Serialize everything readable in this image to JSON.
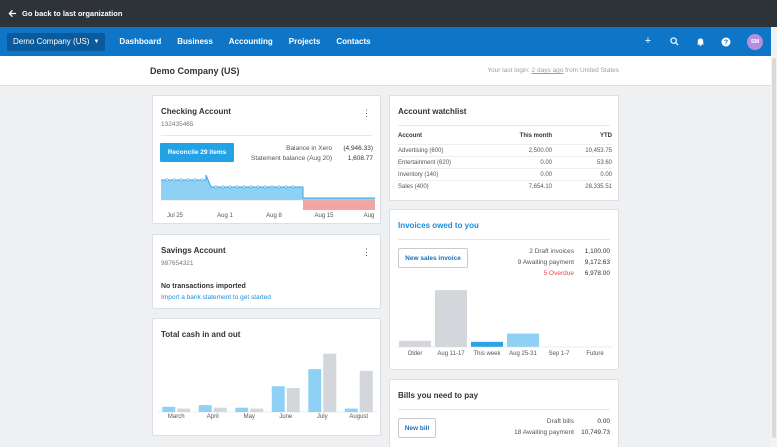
{
  "topbar": {
    "back_label": "Go back to last organization"
  },
  "nav": {
    "org_name": "Demo Company (US)",
    "links": [
      "Dashboard",
      "Business",
      "Accounting",
      "Projects",
      "Contacts"
    ],
    "icons": [
      "plus-icon",
      "search-icon",
      "bell-icon",
      "help-icon"
    ],
    "avatar_initials": "SM"
  },
  "subheader": {
    "title": "Demo Company (US)",
    "login_prefix": "Your last login:",
    "login_time": "2 days ago",
    "login_suffix": "from United States"
  },
  "checking": {
    "title": "Checking Account",
    "number": "132435465",
    "reconcile_label": "Reconcile 29 items",
    "balance_xero_label": "Balance in Xero",
    "balance_xero_value": "(4,946.33)",
    "statement_label": "Statement balance (Aug 20)",
    "statement_value": "1,608.77",
    "x_labels": [
      "Jul 25",
      "Aug 1",
      "Aug 8",
      "Aug 15",
      "Aug"
    ]
  },
  "savings": {
    "title": "Savings Account",
    "number": "987654321",
    "empty_title": "No transactions imported",
    "import_link": "Import a bank statement to get started"
  },
  "cash": {
    "title": "Total cash in and out",
    "colors": {
      "in": "#8fd1f5",
      "out": "#d3d6da"
    },
    "chart_data": {
      "type": "bar",
      "categories": [
        "March",
        "April",
        "May",
        "June",
        "July",
        "August"
      ],
      "series": [
        {
          "values": [
            6,
            8,
            5,
            30,
            50,
            4
          ]
        },
        {
          "values": [
            4,
            5,
            4,
            28,
            68,
            48
          ]
        }
      ],
      "ylim": [
        0,
        70
      ]
    }
  },
  "watchlist": {
    "title": "Account watchlist",
    "headers": [
      "Account",
      "This month",
      "YTD"
    ],
    "rows": [
      [
        "Advertising (600)",
        "2,500.00",
        "10,453.75"
      ],
      [
        "Entertainment (620)",
        "0.00",
        "53.60"
      ],
      [
        "Inventory (140)",
        "0.00",
        "0.00"
      ],
      [
        "Sales (400)",
        "7,654.10",
        "28,335.51"
      ]
    ]
  },
  "invoices": {
    "title": "Invoices owed to you",
    "new_label": "New sales invoice",
    "stats": [
      {
        "label": "2 Draft invoices",
        "value": "1,100.00"
      },
      {
        "label": "9 Awaiting payment",
        "value": "9,172.63"
      },
      {
        "label": "5 Overdue",
        "value": "6,978.00"
      }
    ],
    "colors": {
      "past": "#d3d6da",
      "current": "#2aa3e8",
      "future": "#8fd1f5"
    },
    "chart_data": {
      "type": "bar",
      "categories": [
        "Older",
        "Aug 11-17",
        "This week",
        "Aug 25-31",
        "Sep 1-7",
        "Future"
      ],
      "values": [
        6,
        55,
        5,
        13,
        0,
        0
      ]
    }
  },
  "bills": {
    "title": "Bills you need to pay",
    "new_label": "New bill",
    "stats": [
      {
        "label": "Draft bills",
        "value": "0.00"
      },
      {
        "label": "18 Awaiting payment",
        "value": "10,749.73"
      }
    ]
  }
}
